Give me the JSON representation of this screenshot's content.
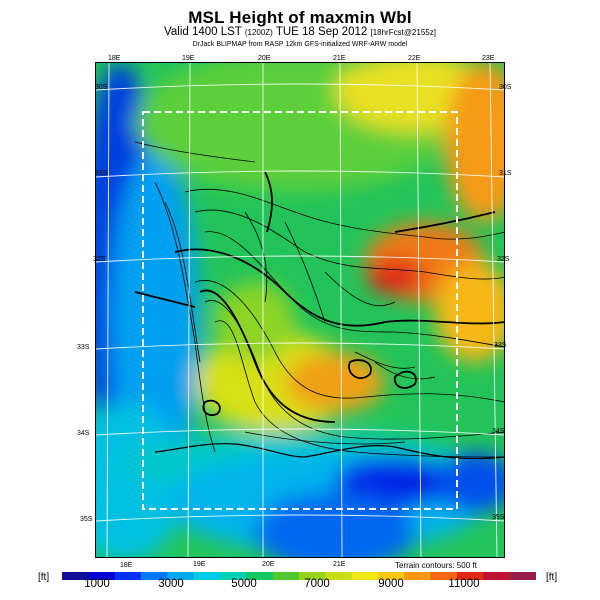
{
  "header": {
    "title": "MSL Height of maxmin Wbl",
    "valid_main": "Valid 1400 LST",
    "valid_small1": "(1200Z)",
    "valid_date": "TUE 18 Sep 2012",
    "valid_small2": "[18hrFcst@2155z]",
    "credit": "DrJack BLIPMAP from RASP 12km GFS-initialized WRF-ARW model"
  },
  "map": {
    "top_lon_labels": [
      "18E",
      "19E",
      "20E",
      "21E",
      "22E",
      "23E"
    ],
    "bottom_lon_labels": [
      "18E",
      "19E",
      "20E",
      "21E"
    ],
    "right_lat_labels": [
      "30S",
      "31S",
      "32S",
      "33S",
      "34S",
      "35S"
    ],
    "left_lat_labels": [
      "30S",
      "31S",
      "32S",
      "33S",
      "34S",
      "35S"
    ],
    "terrain_note": "Terrain contours: 500 ft"
  },
  "colorbar": {
    "unit_left": "[ft]",
    "unit_right": "[ft]",
    "ticks": [
      "1000",
      "3000",
      "5000",
      "7000",
      "9000",
      "11000"
    ],
    "colors": [
      "#0d0d96",
      "#0000d2",
      "#0032f0",
      "#0078f5",
      "#00aaf0",
      "#00cce6",
      "#00d2b4",
      "#14c864",
      "#50c832",
      "#96d21e",
      "#c8dc14",
      "#f0e614",
      "#fac814",
      "#fa9614",
      "#f56414",
      "#e12814",
      "#be1432",
      "#961e46"
    ]
  },
  "colors": {
    "frame": "#000000",
    "dashed_box": "#ffffff",
    "grid": "#ffffff"
  }
}
